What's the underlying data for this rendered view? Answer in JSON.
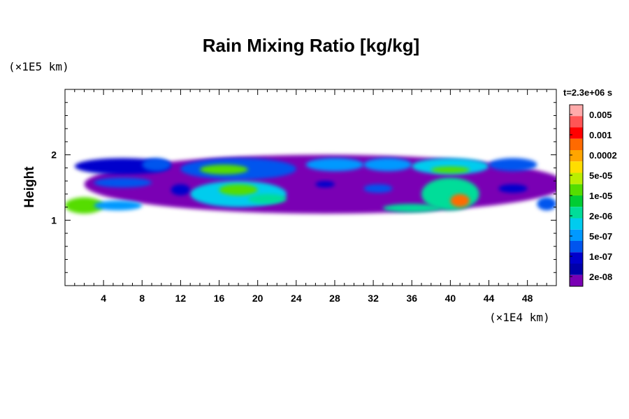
{
  "chart_data": {
    "type": "heatmap",
    "title": "Rain Mixing Ratio [kg/kg]",
    "xlabel": "",
    "ylabel": "Height",
    "x_unit": "(×1E4 km)",
    "y_unit": "(×1E5 km)",
    "time_label": "t=2.3e+06 s",
    "xlim": [
      0,
      51
    ],
    "ylim": [
      0,
      3
    ],
    "x_ticks": [
      4,
      8,
      12,
      16,
      20,
      24,
      28,
      32,
      36,
      40,
      44,
      48
    ],
    "y_ticks": [
      1,
      2
    ],
    "colorbar": {
      "labels": [
        "0.005",
        "0.001",
        "0.0002",
        "5e-05",
        "1e-05",
        "2e-06",
        "5e-07",
        "1e-07",
        "2e-08"
      ],
      "colors": [
        "#ffaaaa",
        "#ff5555",
        "#ff0000",
        "#ff6a00",
        "#ffa500",
        "#ffdd00",
        "#bbee00",
        "#55dd00",
        "#00cc33",
        "#00dd99",
        "#00ccee",
        "#0099ff",
        "#0055ee",
        "#0000cc",
        "#0000aa",
        "#7a00b4"
      ]
    },
    "regions": [
      {
        "x": [
          2,
          52
        ],
        "y": [
          1.1,
          2.0
        ],
        "level": 0
      },
      {
        "x": [
          1,
          11
        ],
        "y": [
          1.7,
          1.95
        ],
        "level": 2
      },
      {
        "x": [
          8,
          11
        ],
        "y": [
          1.75,
          1.95
        ],
        "level": 3
      },
      {
        "x": [
          12,
          24
        ],
        "y": [
          1.62,
          1.95
        ],
        "level": 3
      },
      {
        "x": [
          14,
          19
        ],
        "y": [
          1.7,
          1.85
        ],
        "level": 8
      },
      {
        "x": [
          25,
          31
        ],
        "y": [
          1.75,
          1.95
        ],
        "level": 4
      },
      {
        "x": [
          31,
          36
        ],
        "y": [
          1.75,
          1.95
        ],
        "level": 4
      },
      {
        "x": [
          36,
          44
        ],
        "y": [
          1.7,
          1.95
        ],
        "level": 5
      },
      {
        "x": [
          38,
          42
        ],
        "y": [
          1.72,
          1.82
        ],
        "level": 8
      },
      {
        "x": [
          44,
          49
        ],
        "y": [
          1.75,
          1.95
        ],
        "level": 3
      },
      {
        "x": [
          3,
          9
        ],
        "y": [
          1.5,
          1.65
        ],
        "level": 3
      },
      {
        "x": [
          11,
          13
        ],
        "y": [
          1.38,
          1.55
        ],
        "level": 2
      },
      {
        "x": [
          13,
          23
        ],
        "y": [
          1.2,
          1.6
        ],
        "level": 5
      },
      {
        "x": [
          16,
          20
        ],
        "y": [
          1.38,
          1.55
        ],
        "level": 8
      },
      {
        "x": [
          19,
          23
        ],
        "y": [
          1.25,
          1.4
        ],
        "level": 6
      },
      {
        "x": [
          26,
          28
        ],
        "y": [
          1.5,
          1.6
        ],
        "level": 2
      },
      {
        "x": [
          31,
          34
        ],
        "y": [
          1.42,
          1.55
        ],
        "level": 3
      },
      {
        "x": [
          37,
          43
        ],
        "y": [
          1.15,
          1.65
        ],
        "level": 6
      },
      {
        "x": [
          40,
          42
        ],
        "y": [
          1.2,
          1.4
        ],
        "level": 12
      },
      {
        "x": [
          33,
          39
        ],
        "y": [
          1.12,
          1.25
        ],
        "level": 6
      },
      {
        "x": [
          45,
          48
        ],
        "y": [
          1.42,
          1.55
        ],
        "level": 2
      },
      {
        "x": [
          0,
          4
        ],
        "y": [
          1.1,
          1.35
        ],
        "level": 8
      },
      {
        "x": [
          3,
          8
        ],
        "y": [
          1.15,
          1.3
        ],
        "level": 4
      },
      {
        "x": [
          49,
          51
        ],
        "y": [
          1.15,
          1.35
        ],
        "level": 3
      }
    ]
  }
}
